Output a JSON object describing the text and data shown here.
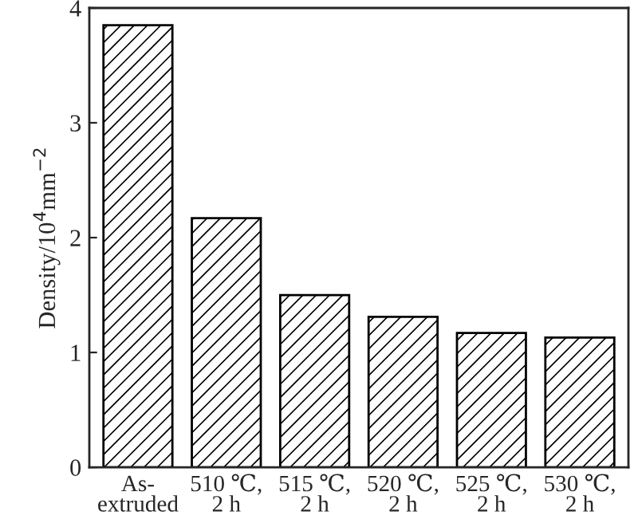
{
  "chart_data": {
    "type": "bar",
    "ylabel": "Density/10$^{4}$mm$^{−2}$",
    "categories": [
      "As-\nextruded",
      "510 ℃,\n2 h",
      "515 ℃,\n2 h",
      "520 ℃,\n2 h",
      "525 ℃,\n2 h",
      "530 ℃,\n2 h"
    ],
    "values": [
      3.85,
      2.17,
      1.5,
      1.31,
      1.17,
      1.13
    ],
    "color": "#000000",
    "ylim": [
      0,
      4
    ],
    "yticks": [
      0,
      1,
      2,
      3,
      4
    ],
    "grid": false,
    "legend": false
  }
}
